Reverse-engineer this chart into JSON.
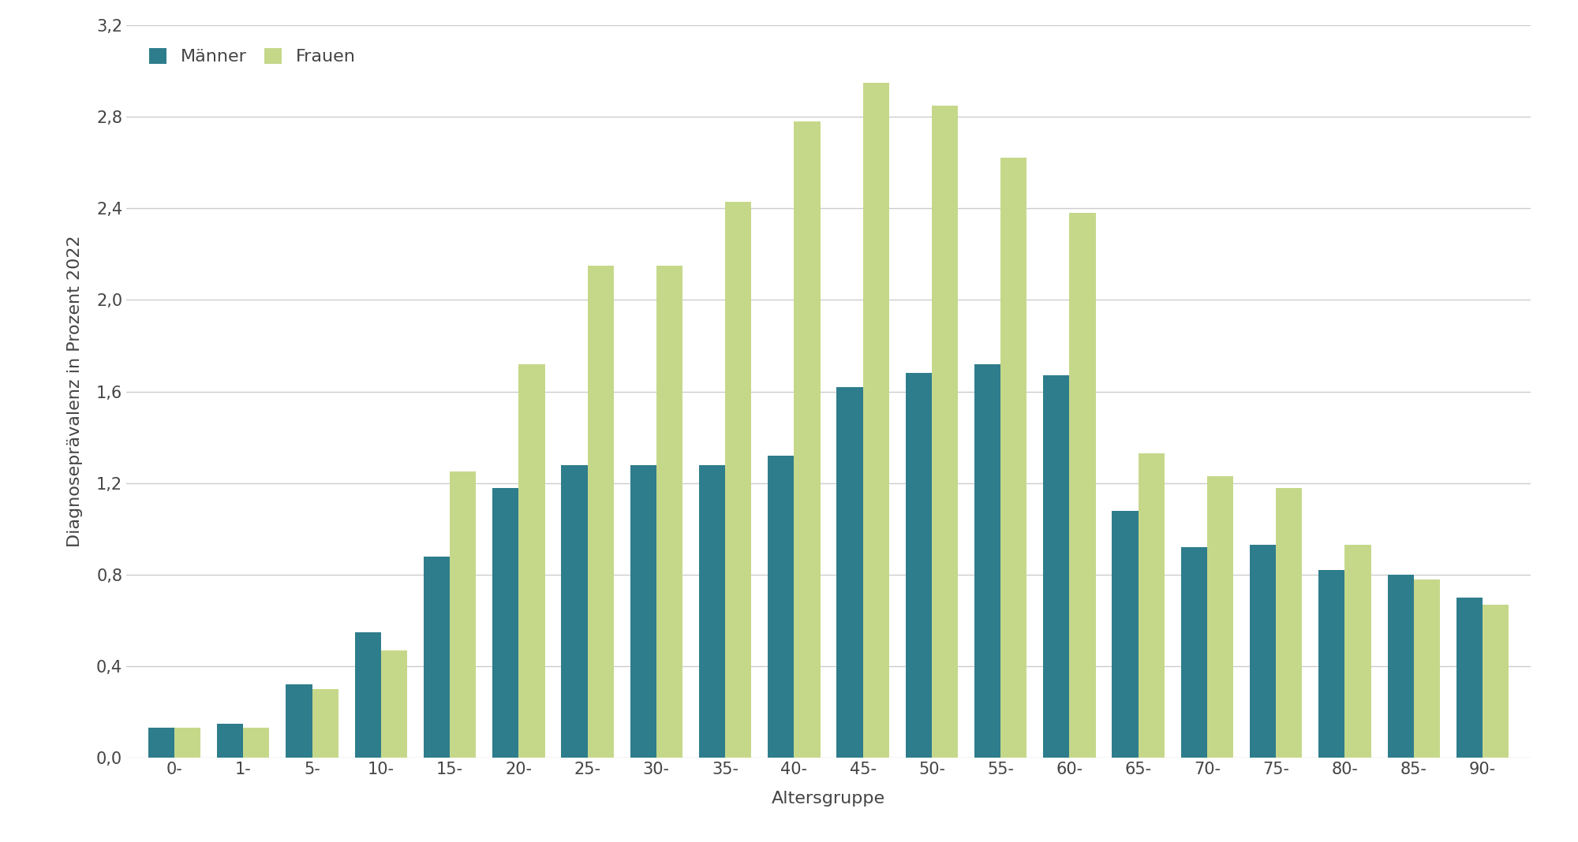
{
  "categories": [
    "0-",
    "1-",
    "5-",
    "10-",
    "15-",
    "20-",
    "25-",
    "30-",
    "35-",
    "40-",
    "45-",
    "50-",
    "55-",
    "60-",
    "65-",
    "70-",
    "75-",
    "80-",
    "85-",
    "90-"
  ],
  "maenner": [
    0.13,
    0.15,
    0.32,
    0.55,
    0.88,
    1.18,
    1.28,
    1.28,
    1.28,
    1.32,
    1.62,
    1.68,
    1.72,
    1.67,
    1.08,
    0.92,
    0.93,
    0.82,
    0.8,
    0.7
  ],
  "frauen": [
    0.13,
    0.13,
    0.3,
    0.47,
    1.25,
    1.72,
    2.15,
    2.15,
    2.43,
    2.78,
    2.95,
    2.85,
    2.62,
    2.38,
    1.33,
    1.23,
    1.18,
    0.93,
    0.78,
    0.67
  ],
  "maenner_color": "#2e7d8c",
  "frauen_color": "#c5d88a",
  "ylabel": "Diagnoseprävalenz in Prozent 2022",
  "xlabel": "Altersgruppe",
  "legend_maenner": "Männer",
  "legend_frauen": "Frauen",
  "ylim": [
    0,
    3.2
  ],
  "yticks": [
    0.0,
    0.4,
    0.8,
    1.2,
    1.6,
    2.0,
    2.4,
    2.8,
    3.2
  ],
  "ytick_labels": [
    "0,0",
    "0,4",
    "0,8",
    "1,2",
    "1,6",
    "2,0",
    "2,4",
    "2,8",
    "3,2"
  ],
  "background_color": "#ffffff",
  "plot_bg_color": "#ffffff",
  "grid_color": "#cccccc",
  "bar_width": 0.38,
  "axis_fontsize": 16,
  "tick_fontsize": 15,
  "legend_fontsize": 16
}
